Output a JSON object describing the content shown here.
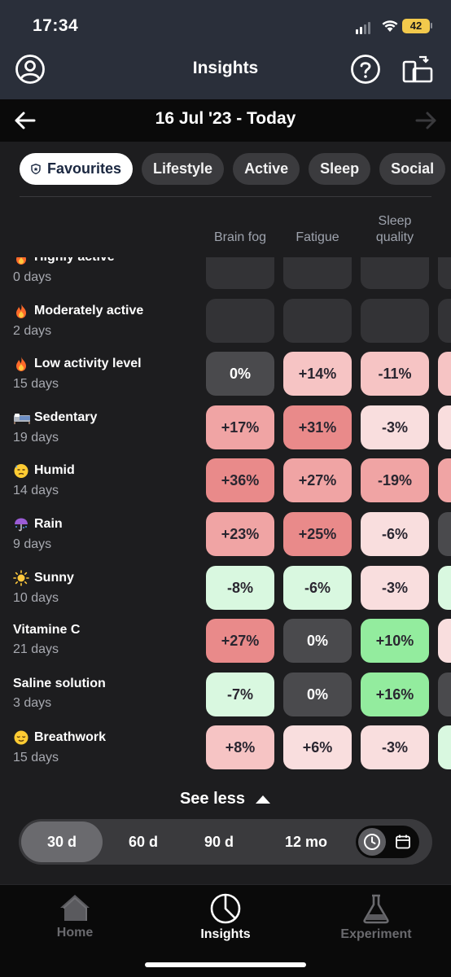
{
  "status_bar": {
    "time": "17:34",
    "battery": "42"
  },
  "header": {
    "title": "Insights",
    "profile_icon": "profile-icon",
    "help_icon": "help-icon",
    "devices_icon": "devices-icon"
  },
  "date_range": {
    "label": "16 Jul '23 - Today"
  },
  "filters": [
    {
      "label": "Favourites",
      "active": true
    },
    {
      "label": "Lifestyle",
      "active": false
    },
    {
      "label": "Active",
      "active": false
    },
    {
      "label": "Sleep",
      "active": false
    },
    {
      "label": "Social",
      "active": false
    }
  ],
  "columns": [
    "Brain fog",
    "Fatigue",
    "Sleep\nquality"
  ],
  "rows": [
    {
      "icon": "fire-icon",
      "name": "Highly active",
      "days": "0 days",
      "values": [
        "",
        "",
        ""
      ],
      "edge": "empty"
    },
    {
      "icon": "fire-icon",
      "name": "Moderately active",
      "days": "2 days",
      "values": [
        "",
        "",
        ""
      ],
      "edge": "empty"
    },
    {
      "icon": "fire-icon",
      "name": "Low activity level",
      "days": "15 days",
      "values": [
        "0%",
        "+14%",
        "-11%"
      ],
      "edge": "pink2"
    },
    {
      "icon": "bed-icon",
      "name": "Sedentary",
      "days": "19 days",
      "values": [
        "+17%",
        "+31%",
        "-3%"
      ],
      "edge": "pink1"
    },
    {
      "icon": "sweat-face-icon",
      "name": "Humid",
      "days": "14 days",
      "values": [
        "+36%",
        "+27%",
        "-19%"
      ],
      "edge": "pink3"
    },
    {
      "icon": "umbrella-rain-icon",
      "name": "Rain",
      "days": "9 days",
      "values": [
        "+23%",
        "+25%",
        "-6%"
      ],
      "edge": "zero"
    },
    {
      "icon": "sun-icon",
      "name": "Sunny",
      "days": "10 days",
      "values": [
        "-8%",
        "-6%",
        "-3%"
      ],
      "edge": "green1"
    },
    {
      "icon": "",
      "name": "Vitamine C",
      "days": "21 days",
      "values": [
        "+27%",
        "0%",
        "+10%"
      ],
      "edge": "pink1"
    },
    {
      "icon": "",
      "name": "Saline solution",
      "days": "3 days",
      "values": [
        "-7%",
        "0%",
        "+16%"
      ],
      "edge": "zero"
    },
    {
      "icon": "relieved-face-icon",
      "name": "Breathwork",
      "days": "15 days",
      "values": [
        "+8%",
        "+6%",
        "-3%"
      ],
      "edge": "green1"
    }
  ],
  "cell_styles": [
    [
      "empty",
      "empty",
      "empty"
    ],
    [
      "empty",
      "empty",
      "empty"
    ],
    [
      "zero",
      "pink2",
      "pink2"
    ],
    [
      "pink3",
      "pink4",
      "pink1"
    ],
    [
      "pink4",
      "pink3",
      "pink3"
    ],
    [
      "pink3",
      "pink4",
      "pink1"
    ],
    [
      "green1",
      "green1",
      "pink1"
    ],
    [
      "pink4",
      "zero",
      "green3"
    ],
    [
      "green1",
      "zero",
      "green3"
    ],
    [
      "pink2",
      "pink1",
      "pink1"
    ]
  ],
  "see_less": {
    "label": "See less"
  },
  "range": {
    "options": [
      "30 d",
      "60 d",
      "90 d",
      "12 mo"
    ],
    "selected": "30 d"
  },
  "tabs": [
    {
      "label": "Home",
      "icon": "home-icon",
      "active": false
    },
    {
      "label": "Insights",
      "icon": "pie-chart-icon",
      "active": true
    },
    {
      "label": "Experiment",
      "icon": "flask-icon",
      "active": false
    }
  ]
}
